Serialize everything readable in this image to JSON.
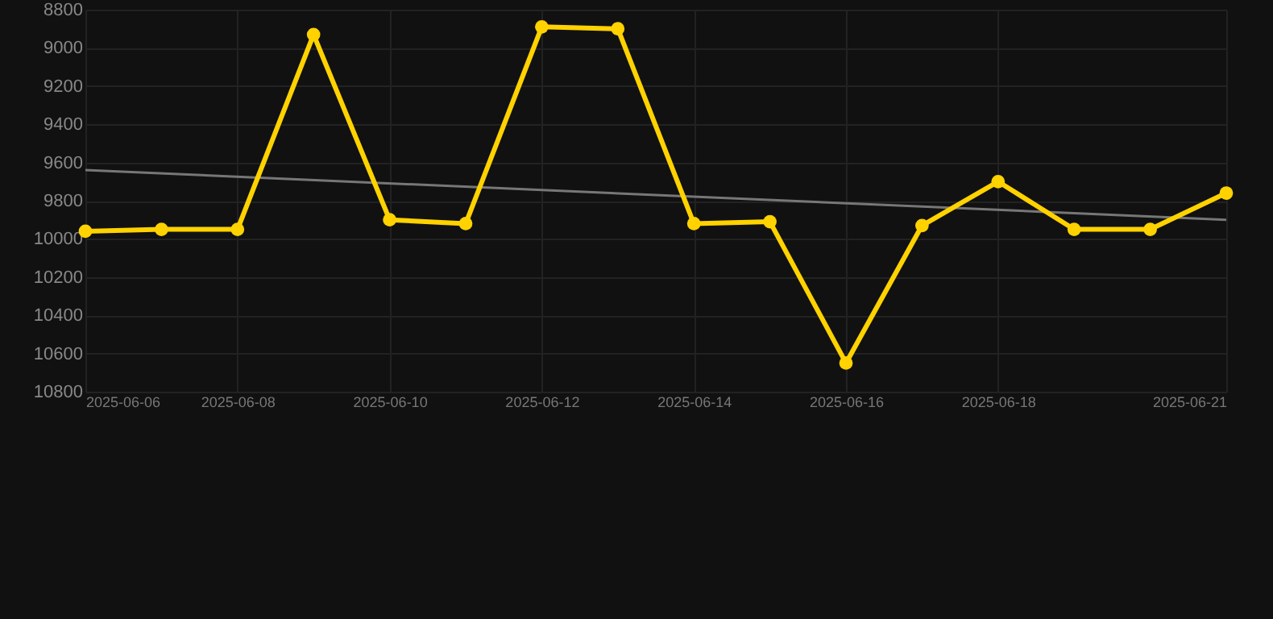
{
  "chart_data": {
    "type": "line",
    "x": [
      "2025-06-06",
      "2025-06-07",
      "2025-06-08",
      "2025-06-09",
      "2025-06-10",
      "2025-06-11",
      "2025-06-12",
      "2025-06-13",
      "2025-06-14",
      "2025-06-15",
      "2025-06-16",
      "2025-06-17",
      "2025-06-18",
      "2025-06-19",
      "2025-06-20",
      "2025-06-21"
    ],
    "series": [
      {
        "color": "#ffd200",
        "values": [
          9960,
          9950,
          9950,
          8930,
          9900,
          9920,
          8890,
          8900,
          9920,
          9910,
          10650,
          9930,
          9700,
          9950,
          9950,
          9760
        ]
      },
      {
        "type": "line",
        "color": "#777777",
        "marker": "none",
        "x": [
          "2025-06-06",
          "2025-06-21"
        ],
        "values": [
          9640,
          9900
        ]
      }
    ],
    "xlim": [
      "2025-06-06",
      "2025-06-21"
    ],
    "xticks": [
      "2025-06-06",
      "2025-06-08",
      "2025-06-10",
      "2025-06-12",
      "2025-06-14",
      "2025-06-16",
      "2025-06-18",
      "2025-06-21"
    ],
    "ylim": [
      10800,
      8800
    ],
    "yticks": [
      8800,
      9000,
      9200,
      9400,
      9600,
      9800,
      10000,
      10200,
      10400,
      10600,
      10800
    ],
    "grid": true,
    "marker": "circle"
  }
}
